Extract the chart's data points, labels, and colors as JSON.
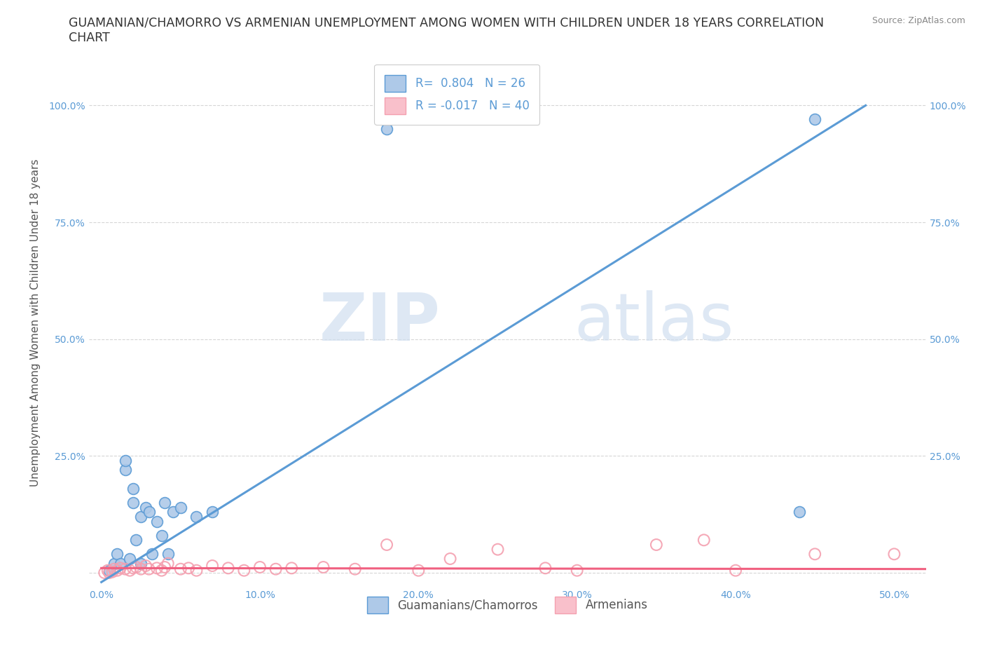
{
  "title_line1": "GUAMANIAN/CHAMORRO VS ARMENIAN UNEMPLOYMENT AMONG WOMEN WITH CHILDREN UNDER 18 YEARS CORRELATION",
  "title_line2": "CHART",
  "source_text": "Source: ZipAtlas.com",
  "ylabel": "Unemployment Among Women with Children Under 18 years",
  "x_ticks": [
    0.0,
    0.1,
    0.2,
    0.3,
    0.4,
    0.5
  ],
  "x_tick_labels": [
    "0.0%",
    "10.0%",
    "20.0%",
    "30.0%",
    "40.0%",
    "50.0%"
  ],
  "y_ticks": [
    0.0,
    0.25,
    0.5,
    0.75,
    1.0
  ],
  "y_tick_labels": [
    "",
    "25.0%",
    "50.0%",
    "75.0%",
    "100.0%"
  ],
  "y_tick_labels_right": [
    "",
    "25.0%",
    "50.0%",
    "75.0%",
    "100.0%"
  ],
  "xlim": [
    -0.008,
    0.52
  ],
  "ylim": [
    -0.03,
    1.1
  ],
  "blue_color": "#aec9e8",
  "blue_edge": "#5b9bd5",
  "pink_facecolor": "none",
  "pink_edge": "#f4a0b0",
  "blue_line_color": "#5b9bd5",
  "pink_line_color": "#f06080",
  "R_blue": 0.804,
  "N_blue": 26,
  "R_pink": -0.017,
  "N_pink": 40,
  "legend_label_blue": "Guamanians/Chamorros",
  "legend_label_pink": "Armenians",
  "watermark_zip": "ZIP",
  "watermark_atlas": "atlas",
  "background_color": "#ffffff",
  "grid_color": "#cccccc",
  "blue_line_x0": 0.0,
  "blue_line_y0": -0.02,
  "blue_line_x1": 0.482,
  "blue_line_y1": 1.0,
  "pink_line_x0": 0.0,
  "pink_line_y0": 0.01,
  "pink_line_x1": 0.52,
  "pink_line_y1": 0.008,
  "blue_scatter_x": [
    0.005,
    0.008,
    0.01,
    0.012,
    0.015,
    0.015,
    0.018,
    0.02,
    0.02,
    0.022,
    0.025,
    0.025,
    0.028,
    0.03,
    0.032,
    0.035,
    0.038,
    0.04,
    0.042,
    0.045,
    0.05,
    0.06,
    0.07,
    0.18,
    0.44,
    0.45
  ],
  "blue_scatter_y": [
    0.005,
    0.02,
    0.04,
    0.02,
    0.22,
    0.24,
    0.03,
    0.15,
    0.18,
    0.07,
    0.12,
    0.02,
    0.14,
    0.13,
    0.04,
    0.11,
    0.08,
    0.15,
    0.04,
    0.13,
    0.14,
    0.12,
    0.13,
    0.95,
    0.13,
    0.97
  ],
  "pink_scatter_x": [
    0.002,
    0.004,
    0.005,
    0.007,
    0.008,
    0.01,
    0.012,
    0.015,
    0.018,
    0.02,
    0.022,
    0.025,
    0.028,
    0.03,
    0.035,
    0.038,
    0.04,
    0.042,
    0.05,
    0.055,
    0.06,
    0.07,
    0.08,
    0.09,
    0.1,
    0.11,
    0.12,
    0.14,
    0.16,
    0.18,
    0.2,
    0.22,
    0.25,
    0.28,
    0.3,
    0.35,
    0.38,
    0.4,
    0.45,
    0.5
  ],
  "pink_scatter_y": [
    0.0,
    0.005,
    0.0,
    0.002,
    0.008,
    0.005,
    0.01,
    0.008,
    0.005,
    0.01,
    0.012,
    0.008,
    0.015,
    0.008,
    0.01,
    0.005,
    0.012,
    0.02,
    0.008,
    0.01,
    0.005,
    0.015,
    0.01,
    0.005,
    0.012,
    0.008,
    0.01,
    0.012,
    0.008,
    0.06,
    0.005,
    0.03,
    0.05,
    0.01,
    0.005,
    0.06,
    0.07,
    0.005,
    0.04,
    0.04
  ],
  "title_fontsize": 12.5,
  "axis_label_fontsize": 11,
  "tick_fontsize": 10,
  "legend_fontsize": 12,
  "source_fontsize": 9,
  "tick_color": "#5b9bd5"
}
